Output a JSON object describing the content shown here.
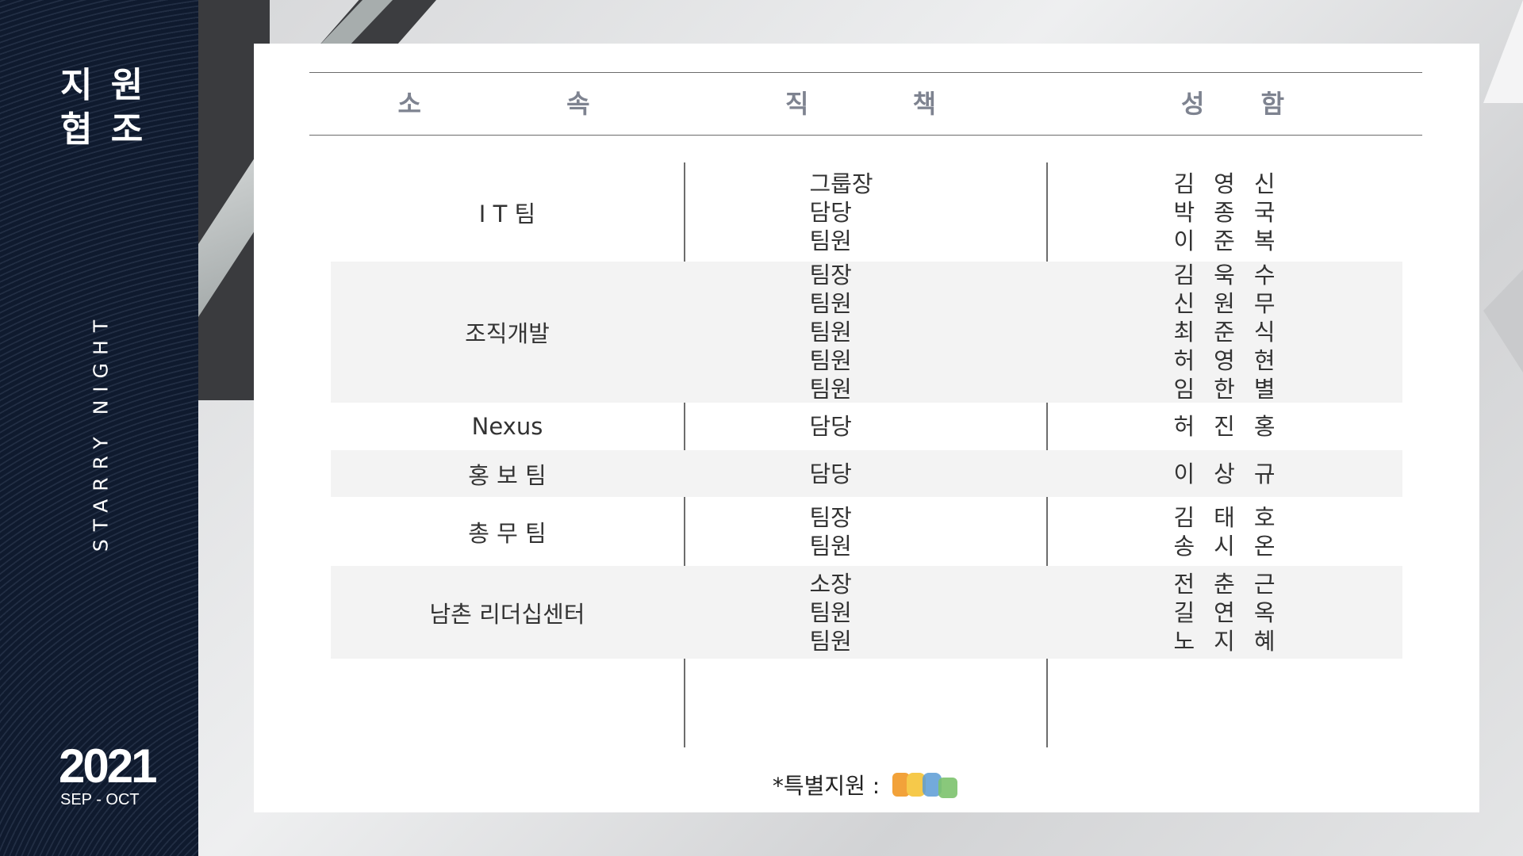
{
  "sidebar": {
    "title_line1": "지 원",
    "title_line2": "협 조",
    "vertical_text": "STARRY NIGHT",
    "year": "2021",
    "period": "SEP - OCT"
  },
  "table": {
    "headers": [
      "소 속",
      "직 책",
      "성 함"
    ],
    "rows": [
      {
        "dept": "I T  팀",
        "positions": [
          "그룹장",
          "담당",
          "팀원"
        ],
        "names": [
          "김영신",
          "박종국",
          "이준복"
        ],
        "shaded": false
      },
      {
        "dept": "조직개발",
        "positions": [
          "팀장",
          "팀원",
          "팀원",
          "팀원",
          "팀원"
        ],
        "names": [
          "김욱수",
          "신원무",
          "최준식",
          "허영현",
          "임한별"
        ],
        "shaded": true
      },
      {
        "dept": "Nexus",
        "positions": [
          "담당"
        ],
        "names": [
          "허진홍"
        ],
        "shaded": false
      },
      {
        "dept": "홍 보 팀",
        "positions": [
          "담당"
        ],
        "names": [
          "이상규"
        ],
        "shaded": true
      },
      {
        "dept": "총 무 팀",
        "positions": [
          "팀장",
          "팀원"
        ],
        "names": [
          "김태호",
          "송시온"
        ],
        "shaded": false
      },
      {
        "dept": "남촌 리더십센터",
        "positions": [
          "소장",
          "팀원",
          "팀원"
        ],
        "names": [
          "전춘근",
          "길연옥",
          "노지혜"
        ],
        "shaded": true
      }
    ]
  },
  "footer": {
    "note": "*특별지원 :"
  },
  "colors": {
    "sidebar_bg": "#0f1a2e",
    "header_text": "#7e8390",
    "row_shade": "#f3f3f3",
    "logo_orange": "#f2a23a",
    "logo_yellow": "#f6c94a",
    "logo_blue": "#5b9bd5",
    "logo_green": "#7cc26d"
  }
}
